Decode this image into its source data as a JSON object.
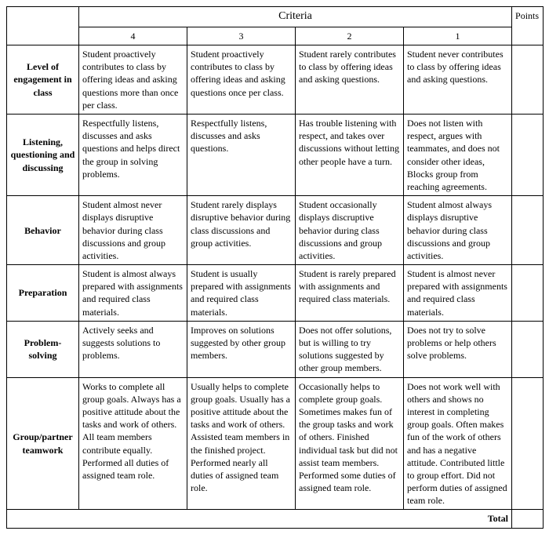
{
  "headers": {
    "criteria": "Criteria",
    "points": "Points",
    "scores": [
      "4",
      "3",
      "2",
      "1"
    ]
  },
  "rows": [
    {
      "label": "Level of engagement in class",
      "cells": [
        "Student proactively contributes to class by offering ideas and asking questions more than once per class.",
        "Student proactively contributes to class by offering ideas and asking questions once per class.",
        "Student rarely contributes to class by offering ideas and asking questions.",
        "Student never contributes to class by offering ideas and asking questions."
      ]
    },
    {
      "label": "Listening, questioning and discussing",
      "cells": [
        "Respectfully listens, discusses and asks questions and helps direct the group in solving problems.",
        "Respectfully listens, discusses and asks questions.",
        "Has trouble listening with respect, and takes over discussions without letting other people have a turn.",
        "Does not listen with respect, argues with teammates, and does not consider other ideas, Blocks group from reaching agreements."
      ]
    },
    {
      "label": "Behavior",
      "cells": [
        "Student almost never displays disruptive behavior during class discussions and group activities.",
        "Student rarely displays disruptive behavior during class discussions and group activities.",
        "Student occasionally displays discruptive behavior during class discussions and group activities.",
        "Student almost always displays disruptive behavior during class discussions and group activities."
      ]
    },
    {
      "label": "Preparation",
      "cells": [
        "Student is almost always prepared with assignments and required class materials.",
        "Student is usually prepared with assignments and required class materials.",
        "Student is rarely prepared with assignments and required class materials.",
        "Student is almost never prepared with assignments and required class materials."
      ]
    },
    {
      "label": "Problem-solving",
      "cells": [
        "Actively seeks and suggests solutions to problems.",
        "Improves on solutions suggested by other group members.",
        "Does not offer solutions, but is willing to try solutions suggested by other group members.",
        "Does not try to solve problems or help others solve problems."
      ]
    },
    {
      "label": "Group/partner teamwork",
      "cells": [
        "Works to complete all group goals. Always has a positive attitude about the tasks and work of others. All team members contribute equally. Performed all duties of assigned team role.",
        "Usually helps to complete group goals. Usually has a positive attitude about the tasks and work of others. Assisted team members in the finished project. Performed nearly all duties of assigned team role.",
        "Occasionally helps to complete group goals. Sometimes makes fun of the group tasks and work of others. Finished individual task but did not assist team members. Performed some duties of assigned team role.",
        "Does not work well with others and shows no interest in completing group goals. Often makes fun of the work of others and has a negative attitude. Contributed little to group effort. Did not perform duties of assigned team role."
      ]
    }
  ],
  "footer": {
    "total": "Total"
  },
  "style": {
    "font_family": "Garamond, serif",
    "body_fontsize": 12,
    "header_fontsize": 14,
    "border_color": "#000000",
    "background_color": "#ffffff",
    "text_color": "#000000",
    "col_widths": {
      "rowhdr": 92,
      "c4": 138,
      "c3": 138,
      "c2": 138,
      "c1": 138,
      "pts": 40
    }
  }
}
